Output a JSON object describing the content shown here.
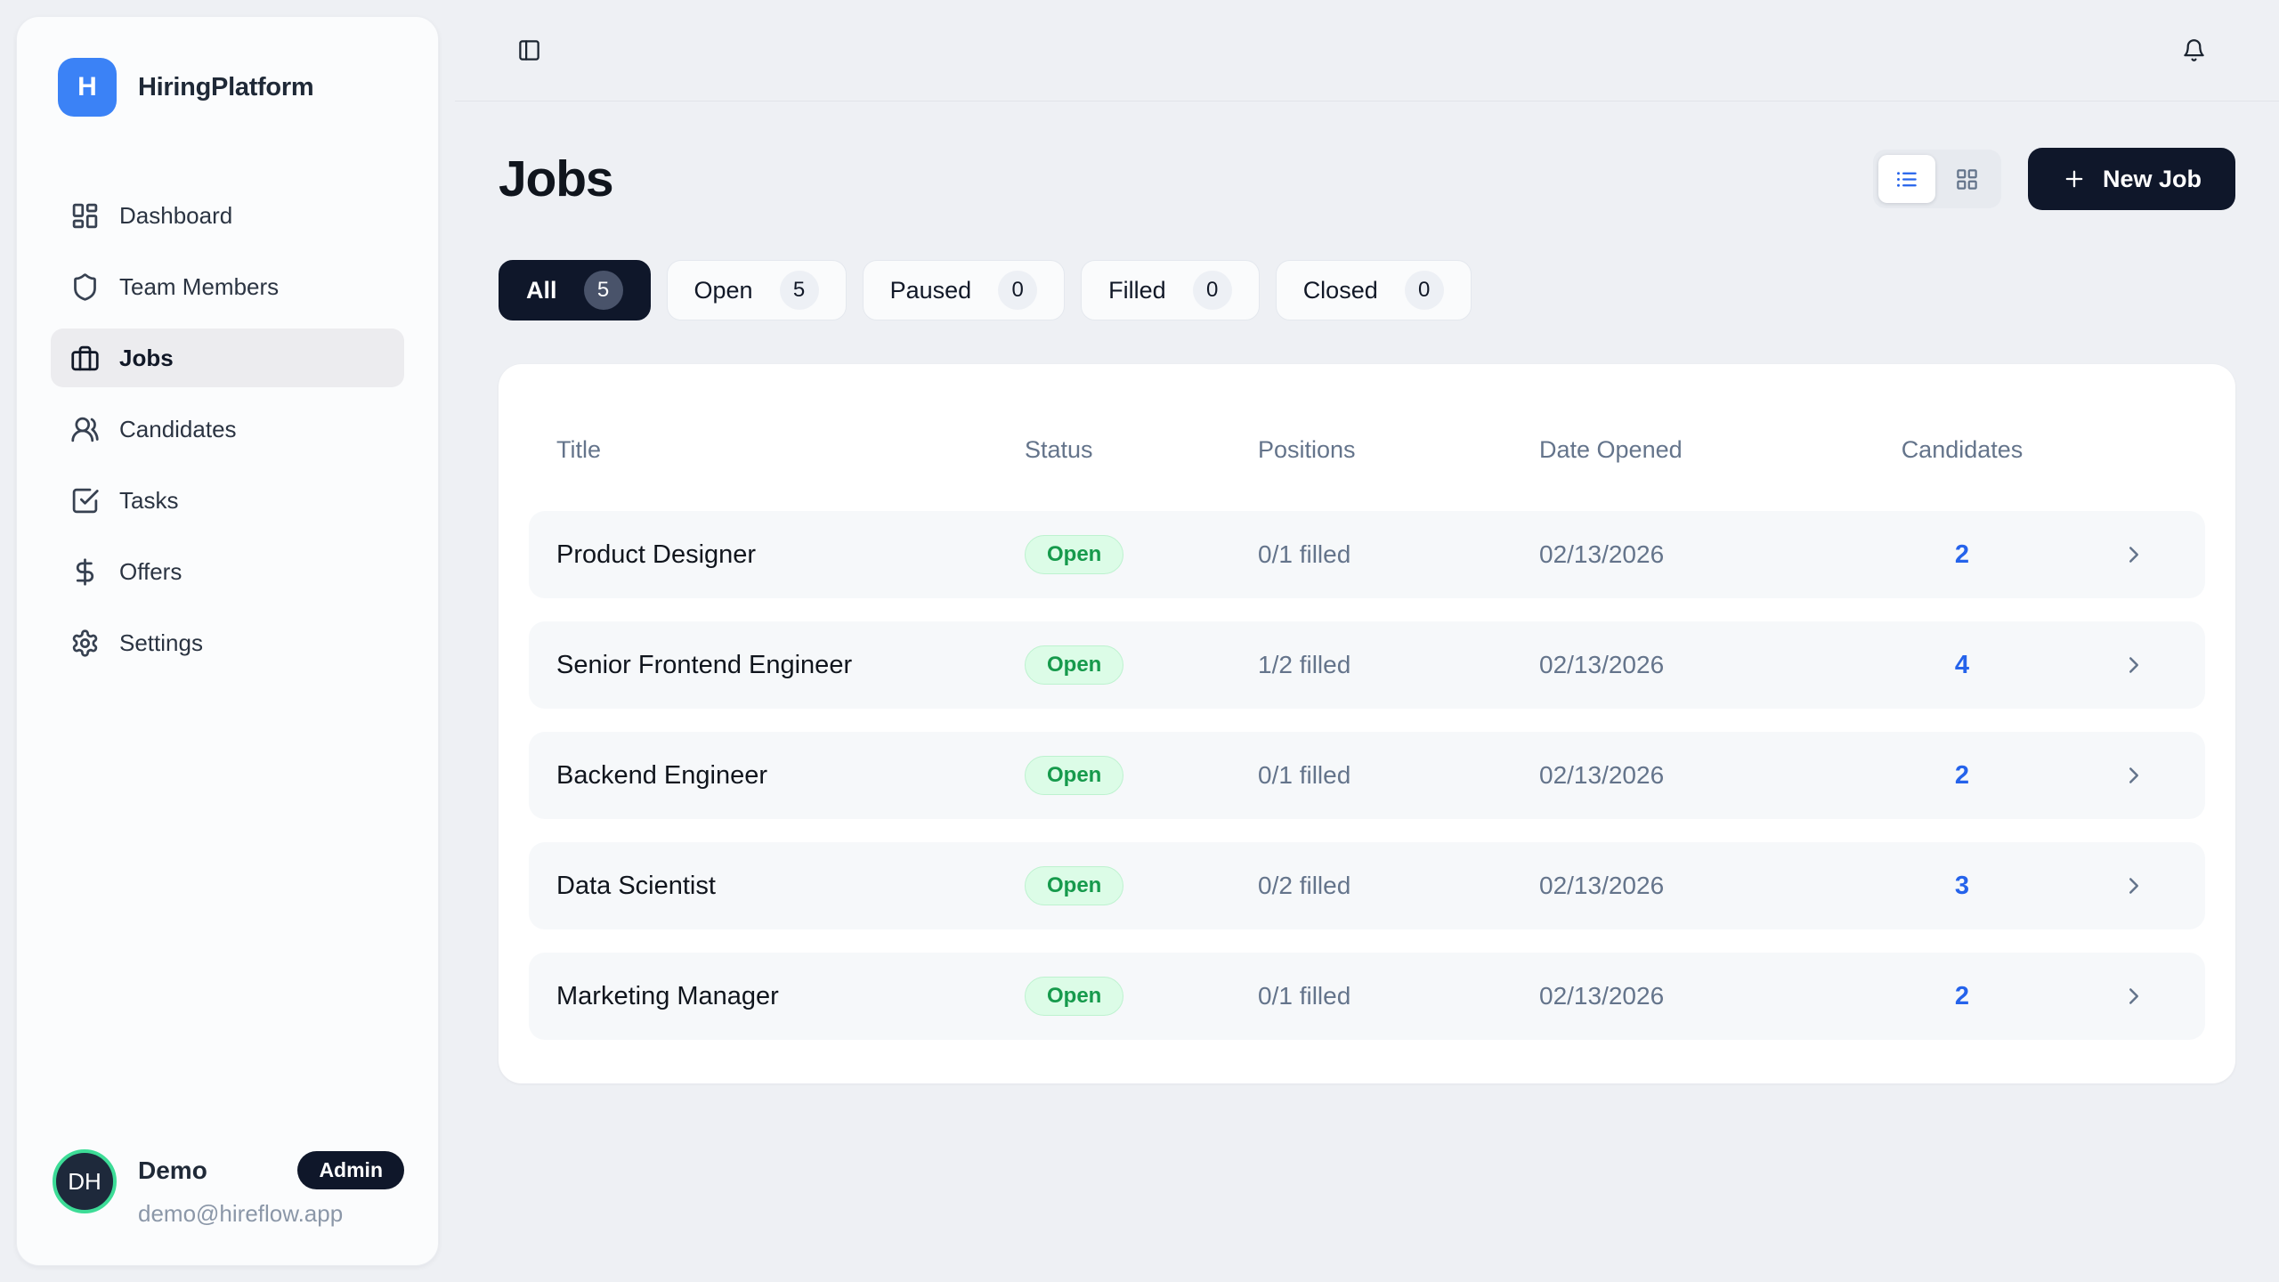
{
  "brand": {
    "name": "HiringPlatform",
    "logo_letter": "H"
  },
  "colors": {
    "accent_blue": "#3b82f6",
    "dark_navy": "#0f172a",
    "open_badge_bg": "#dcfce7",
    "open_badge_text": "#16a34a",
    "candidates_link": "#2563eb",
    "avatar_ring": "#3ddc97"
  },
  "topbar": {
    "sidebar_toggle_icon": "panel-left-icon",
    "notifications_icon": "bell-icon"
  },
  "sidebar": {
    "items": [
      {
        "label": "Dashboard",
        "icon": "dashboard-icon",
        "active": false
      },
      {
        "label": "Team Members",
        "icon": "shield-icon",
        "active": false
      },
      {
        "label": "Jobs",
        "icon": "briefcase-icon",
        "active": true
      },
      {
        "label": "Candidates",
        "icon": "users-icon",
        "active": false
      },
      {
        "label": "Tasks",
        "icon": "check-square-icon",
        "active": false
      },
      {
        "label": "Offers",
        "icon": "dollar-icon",
        "active": false
      },
      {
        "label": "Settings",
        "icon": "gear-icon",
        "active": false
      }
    ],
    "profile": {
      "initials": "DH",
      "name": "Demo",
      "badge": "Admin",
      "email": "demo@hireflow.app"
    }
  },
  "page": {
    "title": "Jobs",
    "new_job_label": "New Job",
    "view_modes": [
      {
        "icon": "list-icon",
        "active": true
      },
      {
        "icon": "grid-icon",
        "active": false
      }
    ],
    "filters": [
      {
        "label": "All",
        "count": "5",
        "active": true
      },
      {
        "label": "Open",
        "count": "5",
        "active": false
      },
      {
        "label": "Paused",
        "count": "0",
        "active": false
      },
      {
        "label": "Filled",
        "count": "0",
        "active": false
      },
      {
        "label": "Closed",
        "count": "0",
        "active": false
      }
    ],
    "table": {
      "columns": [
        "Title",
        "Status",
        "Positions",
        "Date Opened",
        "Candidates"
      ],
      "rows": [
        {
          "title": "Product Designer",
          "status": "Open",
          "positions": "0/1 filled",
          "date_opened": "02/13/2026",
          "candidates": "2"
        },
        {
          "title": "Senior Frontend Engineer",
          "status": "Open",
          "positions": "1/2 filled",
          "date_opened": "02/13/2026",
          "candidates": "4"
        },
        {
          "title": "Backend Engineer",
          "status": "Open",
          "positions": "0/1 filled",
          "date_opened": "02/13/2026",
          "candidates": "2"
        },
        {
          "title": "Data Scientist",
          "status": "Open",
          "positions": "0/2 filled",
          "date_opened": "02/13/2026",
          "candidates": "3"
        },
        {
          "title": "Marketing Manager",
          "status": "Open",
          "positions": "0/1 filled",
          "date_opened": "02/13/2026",
          "candidates": "2"
        }
      ]
    }
  }
}
